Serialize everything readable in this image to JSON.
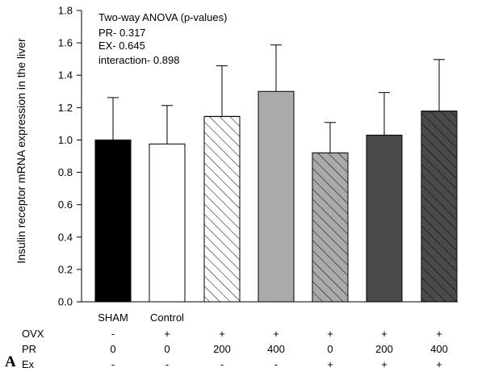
{
  "panel_label": "A",
  "annotation": [
    "Two-way ANOVA (p-values)",
    "PR- 0.317",
    "EX- 0.645",
    "interaction- 0.898"
  ],
  "chart_data": {
    "type": "bar",
    "title": "",
    "ylabel": "Insulin receptor mRNA expression in the liver",
    "ylim": [
      0.0,
      1.8
    ],
    "yticks": [
      "0.0",
      "0.2",
      "0.4",
      "0.6",
      "0.8",
      "1.0",
      "1.2",
      "1.4",
      "1.6",
      "1.8"
    ],
    "categories": [
      "SHAM",
      "Control",
      "",
      "",
      "",
      "",
      ""
    ],
    "values": [
      1.0,
      0.975,
      1.145,
      1.3,
      0.92,
      1.03,
      1.178
    ],
    "error_upper": [
      1.262,
      1.213,
      1.458,
      1.587,
      1.108,
      1.293,
      1.497
    ],
    "fills": [
      "#000000",
      "#ffffff",
      "#ffffff",
      "#aaaaaa",
      "#aaaaaa",
      "#4a4a4a",
      "#4a4a4a"
    ],
    "hatched": [
      false,
      false,
      true,
      false,
      true,
      false,
      true
    ],
    "conditions": [
      {
        "name": "OVX",
        "values": [
          "-",
          "+",
          "+",
          "+",
          "+",
          "+",
          "+"
        ]
      },
      {
        "name": "PR",
        "values": [
          "0",
          "0",
          "200",
          "400",
          "0",
          "200",
          "400"
        ]
      },
      {
        "name": "Ex",
        "values": [
          "-",
          "-",
          "-",
          "-",
          "+",
          "+",
          "+"
        ]
      }
    ],
    "grid": false,
    "legend": "none"
  }
}
